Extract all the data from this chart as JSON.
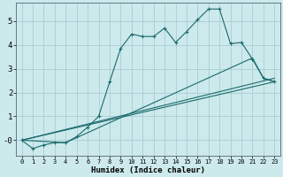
{
  "xlabel": "Humidex (Indice chaleur)",
  "bg_color": "#cce9ec",
  "grid_color": "#aacdd4",
  "line_color": "#1a6b6b",
  "xlim": [
    -0.5,
    23.5
  ],
  "ylim": [
    -0.65,
    5.75
  ],
  "yticks": [
    0,
    1,
    2,
    3,
    4,
    5
  ],
  "ytick_labels": [
    "-0",
    "1",
    "2",
    "3",
    "4",
    "5"
  ],
  "xticks": [
    0,
    1,
    2,
    3,
    4,
    5,
    6,
    7,
    8,
    9,
    10,
    11,
    12,
    13,
    14,
    15,
    16,
    17,
    18,
    19,
    20,
    21,
    22,
    23
  ],
  "series1_x": [
    0,
    1,
    2,
    3,
    4,
    5,
    6,
    7,
    8,
    9,
    10,
    11,
    12,
    13,
    14,
    15,
    16,
    17,
    18,
    19,
    20,
    21,
    22,
    23
  ],
  "series1_y": [
    0.0,
    -0.35,
    -0.2,
    -0.1,
    -0.1,
    0.15,
    0.55,
    1.0,
    2.45,
    3.85,
    4.45,
    4.35,
    4.35,
    4.7,
    4.1,
    4.55,
    5.05,
    5.5,
    5.5,
    4.05,
    4.1,
    3.4,
    2.6,
    2.45
  ],
  "series2_x": [
    0,
    4,
    21,
    22,
    23
  ],
  "series2_y": [
    0.0,
    -0.1,
    3.45,
    2.6,
    2.45
  ],
  "series3_x": [
    0,
    23
  ],
  "series3_y": [
    0.0,
    2.45
  ],
  "series4_x": [
    0,
    23
  ],
  "series4_y": [
    0.0,
    2.6
  ]
}
